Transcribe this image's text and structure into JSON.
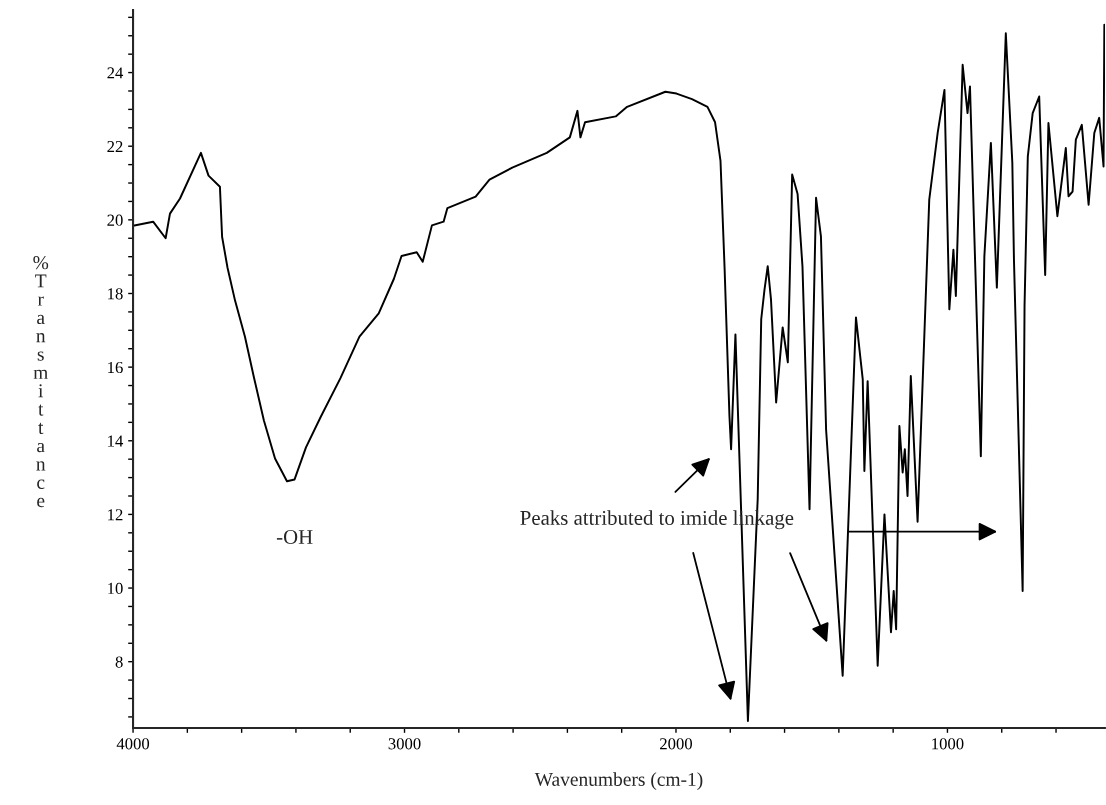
{
  "chart_data": {
    "type": "line",
    "xlabel": "Wavenumbers (cm-1)",
    "ylabel": "%Transmittance",
    "xlim": [
      4000,
      420
    ],
    "ylim": [
      6.2,
      25.7
    ],
    "xticks": [
      4000,
      {
        "value": 3800,
        "label": null
      },
      {
        "value": 3600,
        "label": null
      },
      {
        "value": 3400,
        "label": null
      },
      {
        "value": 3200,
        "label": null
      },
      3000,
      {
        "value": 2800,
        "label": null
      },
      {
        "value": 2600,
        "label": null
      },
      {
        "value": 2400,
        "label": null
      },
      {
        "value": 2200,
        "label": null
      },
      2000,
      {
        "value": 1800,
        "label": null
      },
      {
        "value": 1600,
        "label": null
      },
      {
        "value": 1400,
        "label": null
      },
      {
        "value": 1200,
        "label": null
      },
      1000,
      {
        "value": 800,
        "label": null
      },
      {
        "value": 600,
        "label": null
      }
    ],
    "yticks": [
      {
        "value": 6.5,
        "label": null
      },
      {
        "value": 7,
        "label": null
      },
      {
        "value": 7.5,
        "label": null
      },
      8,
      {
        "value": 8.5,
        "label": null
      },
      {
        "value": 9,
        "label": null
      },
      {
        "value": 9.5,
        "label": null
      },
      10,
      {
        "value": 10.5,
        "label": null
      },
      {
        "value": 11,
        "label": null
      },
      {
        "value": 11.5,
        "label": null
      },
      12,
      {
        "value": 12.5,
        "label": null
      },
      {
        "value": 13,
        "label": null
      },
      {
        "value": 13.5,
        "label": null
      },
      14,
      {
        "value": 14.5,
        "label": null
      },
      {
        "value": 15,
        "label": null
      },
      {
        "value": 15.5,
        "label": null
      },
      16,
      {
        "value": 16.5,
        "label": null
      },
      {
        "value": 17,
        "label": null
      },
      {
        "value": 17.5,
        "label": null
      },
      18,
      {
        "value": 18.5,
        "label": null
      },
      {
        "value": 19,
        "label": null
      },
      {
        "value": 19.5,
        "label": null
      },
      20,
      {
        "value": 20.5,
        "label": null
      },
      {
        "value": 21,
        "label": null
      },
      {
        "value": 21.5,
        "label": null
      },
      22,
      {
        "value": 22.5,
        "label": null
      },
      {
        "value": 23,
        "label": null
      },
      {
        "value": 23.5,
        "label": null
      },
      24,
      {
        "value": 24.5,
        "label": null
      },
      {
        "value": 25,
        "label": null
      },
      {
        "value": 25.5,
        "label": null
      }
    ],
    "grid": false,
    "legend": false,
    "marker": "none",
    "line_style": "solid",
    "annotations": [
      "-OH",
      "Peaks attributed to imide linkage"
    ],
    "series": [
      {
        "color": "#000000",
        "x": [
          4000,
          3926,
          3880,
          3864,
          3827,
          3750,
          3722,
          3680,
          3672,
          3652,
          3624,
          3588,
          3554,
          3518,
          3477,
          3433,
          3405,
          3363,
          3308,
          3236,
          3166,
          3095,
          3039,
          3011,
          2955,
          2933,
          2899,
          2856,
          2842,
          2738,
          2687,
          2603,
          2476,
          2391,
          2363,
          2352,
          2335,
          2222,
          2180,
          2039,
          1998,
          1941,
          1884,
          1856,
          1836,
          1821,
          1803,
          1797,
          1781,
          1735,
          1699,
          1686,
          1674,
          1662,
          1650,
          1631,
          1607,
          1588,
          1572,
          1552,
          1534,
          1508,
          1484,
          1466,
          1447,
          1386,
          1337,
          1312,
          1306,
          1294,
          1257,
          1232,
          1208,
          1198,
          1189,
          1177,
          1165,
          1157,
          1147,
          1135,
          1110,
          1067,
          1036,
          1011,
          993,
          978,
          969,
          944,
          926,
          917,
          877,
          864,
          840,
          818,
          785,
          761,
          755,
          723,
          716,
          704,
          686,
          662,
          640,
          628,
          595,
          564,
          554,
          539,
          527,
          505,
          480,
          459,
          441,
          425,
          422
        ],
        "values": [
          19.84,
          19.95,
          19.5,
          20.17,
          20.58,
          21.82,
          21.2,
          20.9,
          19.54,
          18.7,
          17.8,
          16.83,
          15.7,
          14.55,
          13.52,
          12.9,
          12.95,
          13.82,
          14.66,
          15.7,
          16.83,
          17.46,
          18.4,
          19.02,
          19.12,
          18.86,
          19.85,
          19.95,
          20.32,
          20.63,
          21.09,
          21.42,
          21.82,
          22.24,
          22.96,
          22.24,
          22.65,
          22.81,
          23.07,
          23.48,
          23.43,
          23.28,
          23.07,
          22.65,
          21.6,
          18.7,
          14.67,
          13.77,
          16.89,
          6.39,
          12.41,
          17.3,
          18.1,
          18.74,
          17.84,
          15.04,
          17.08,
          16.13,
          21.23,
          20.7,
          18.73,
          12.14,
          20.6,
          19.55,
          14.3,
          7.62,
          17.35,
          15.67,
          13.18,
          15.62,
          7.89,
          12.0,
          8.8,
          9.92,
          8.88,
          14.4,
          13.14,
          13.77,
          12.5,
          15.76,
          11.8,
          20.55,
          22.36,
          23.53,
          17.57,
          19.19,
          17.93,
          24.21,
          22.9,
          23.62,
          13.58,
          19.01,
          22.09,
          18.16,
          25.07,
          21.55,
          18.92,
          9.92,
          17.66,
          21.72,
          22.9,
          23.35,
          18.5,
          22.63,
          20.1,
          21.95,
          20.64,
          20.77,
          22.18,
          22.58,
          20.41,
          22.36,
          22.77,
          21.45,
          25.3
        ]
      }
    ]
  }
}
